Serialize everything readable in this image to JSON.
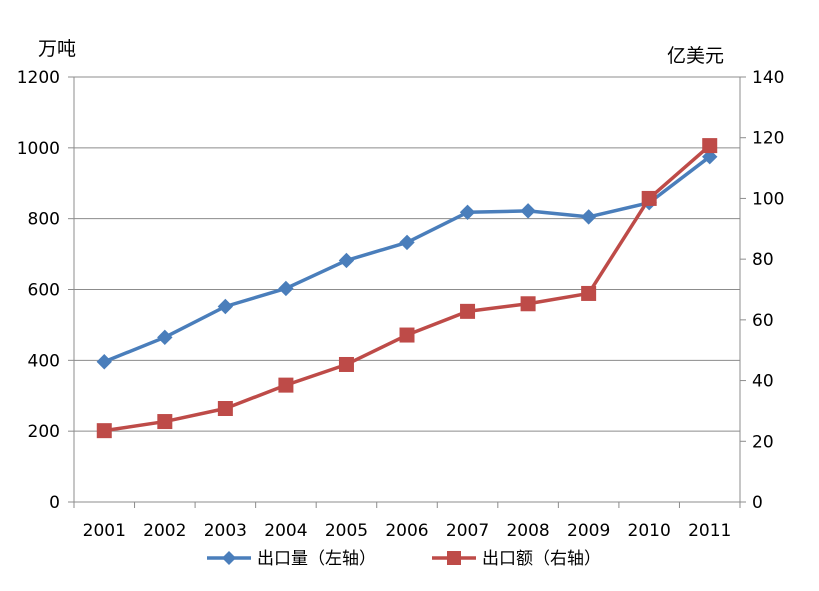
{
  "chart_data": {
    "type": "line",
    "categories": [
      "2001",
      "2002",
      "2003",
      "2004",
      "2005",
      "2006",
      "2007",
      "2008",
      "2009",
      "2010",
      "2011"
    ],
    "y_left": {
      "unit": "万吨",
      "ylim": [
        0,
        1200
      ],
      "ticks": [
        "0",
        "200",
        "400",
        "600",
        "800",
        "1000",
        "1200"
      ]
    },
    "y_right": {
      "unit": "亿美元",
      "ylim": [
        0,
        140
      ],
      "ticks": [
        "0",
        "20",
        "40",
        "60",
        "80",
        "100",
        "120",
        "140"
      ]
    },
    "grid": true,
    "legend_position": "bottom",
    "series": [
      {
        "name": "出口量（左轴）",
        "axis": "left",
        "color": "#4a7ebb",
        "marker": "diamond",
        "values": [
          396,
          465,
          552,
          603,
          682,
          733,
          818,
          822,
          805,
          845,
          975
        ]
      },
      {
        "name": "出口额（右轴）",
        "axis": "right",
        "color": "#be4b48",
        "marker": "square",
        "values": [
          23.5,
          26.5,
          30.8,
          38.5,
          45.3,
          55,
          62.8,
          65.3,
          68.7,
          100,
          117.4
        ]
      }
    ]
  }
}
